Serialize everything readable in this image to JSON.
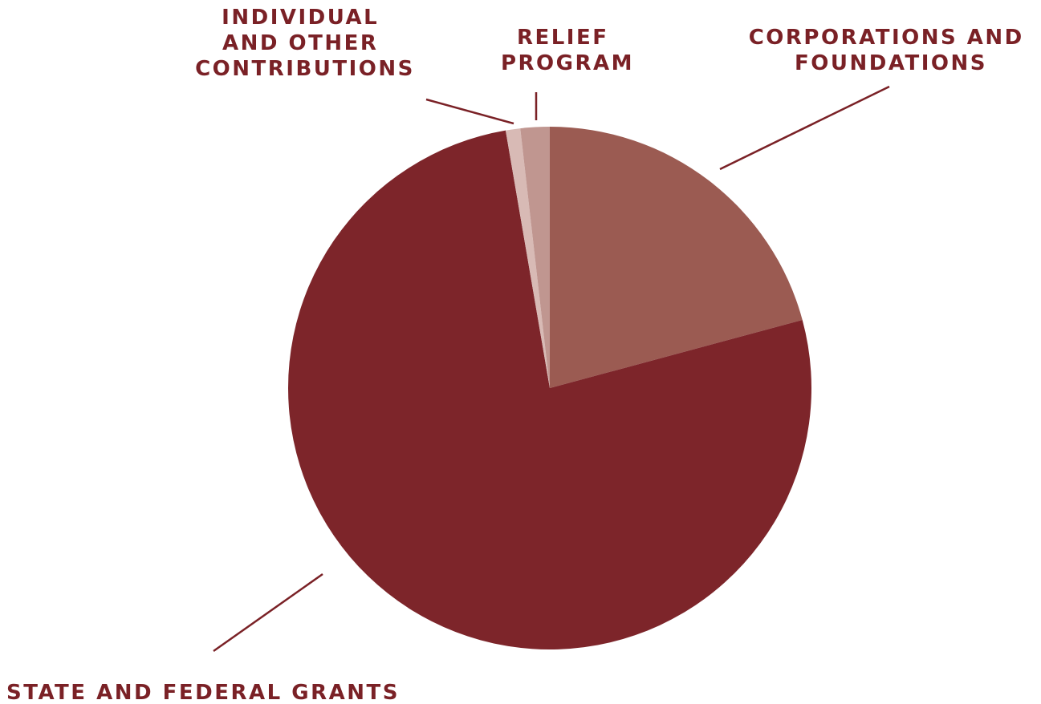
{
  "colors": {
    "label_text": "#7a2126",
    "leader_line": "#7a2126",
    "background": "#ffffff"
  },
  "chart_data": {
    "type": "pie",
    "title": "",
    "start_angle_deg": 0,
    "direction": "clockwise",
    "slices": [
      {
        "label": "CORPORATIONS AND FOUNDATIONS",
        "label_lines": [
          "CORPORATIONS AND",
          "FOUNDATIONS"
        ],
        "value": 20.8,
        "color": "#9b5b52"
      },
      {
        "label": "STATE AND FEDERAL GRANTS",
        "label_lines": [
          "STATE AND FEDERAL GRANTS"
        ],
        "value": 76.5,
        "color": "#7d252a"
      },
      {
        "label": "INDIVIDUAL AND OTHER CONTRIBUTIONS",
        "label_lines": [
          "INDIVIDUAL",
          "AND OTHER",
          "CONTRIBUTIONS"
        ],
        "value": 0.9,
        "color": "#d8bab5"
      },
      {
        "label": "RELIEF PROGRAM",
        "label_lines": [
          "RELIEF",
          "PROGRAM"
        ],
        "value": 1.8,
        "color": "#c09690"
      }
    ]
  }
}
